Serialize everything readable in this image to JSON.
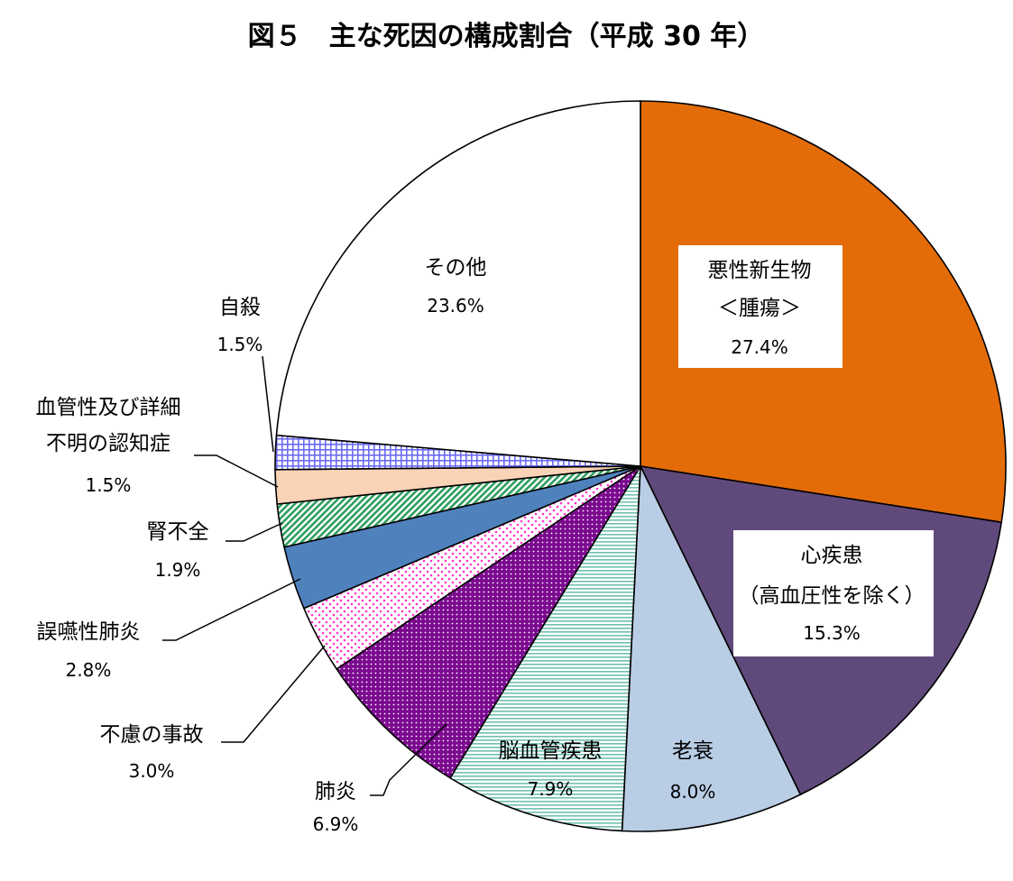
{
  "chart_data": {
    "type": "pie",
    "title": "図５　主な死因の構成割合（平成 30 年）",
    "unit": "%",
    "slices": [
      {
        "name": "悪性新生物",
        "name2": "＜腫瘍＞",
        "value": 27.4,
        "label": "27.4%",
        "color": "#E36C09",
        "pattern": "solid"
      },
      {
        "name": "心疾患",
        "name2": "（高血圧性を除く）",
        "value": 15.3,
        "label": "15.3%",
        "color": "#604A7B",
        "pattern": "solid"
      },
      {
        "name": "老衰",
        "value": 8.0,
        "label": "8.0%",
        "color": "#B9CDE5",
        "pattern": "solid"
      },
      {
        "name": "脳血管疾患",
        "value": 7.9,
        "label": "7.9%",
        "color": "#70C0B0",
        "pattern": "hstripe"
      },
      {
        "name": "肺炎",
        "value": 6.9,
        "label": "6.9%",
        "color": "#7B0A8F",
        "pattern": "dots-dense"
      },
      {
        "name": "不慮の事故",
        "value": 3.0,
        "label": "3.0%",
        "color": "#FF33CC",
        "pattern": "dots-sparse"
      },
      {
        "name": "誤嚥性肺炎",
        "value": 2.8,
        "label": "2.8%",
        "color": "#4F81BD",
        "pattern": "solid"
      },
      {
        "name": "腎不全",
        "value": 1.9,
        "label": "1.9%",
        "color": "#2E9E5E",
        "pattern": "diag"
      },
      {
        "name": "血管性及び詳細",
        "name2": "不明の認知症",
        "value": 1.5,
        "label": "1.5%",
        "color": "#FAD3B7",
        "pattern": "solid"
      },
      {
        "name": "自殺",
        "value": 1.5,
        "label": "1.5%",
        "color": "#6B6BF5",
        "pattern": "grid"
      },
      {
        "name": "その他",
        "value": 23.6,
        "label": "23.6%",
        "color": "#FFFFFF",
        "pattern": "solid"
      }
    ]
  }
}
